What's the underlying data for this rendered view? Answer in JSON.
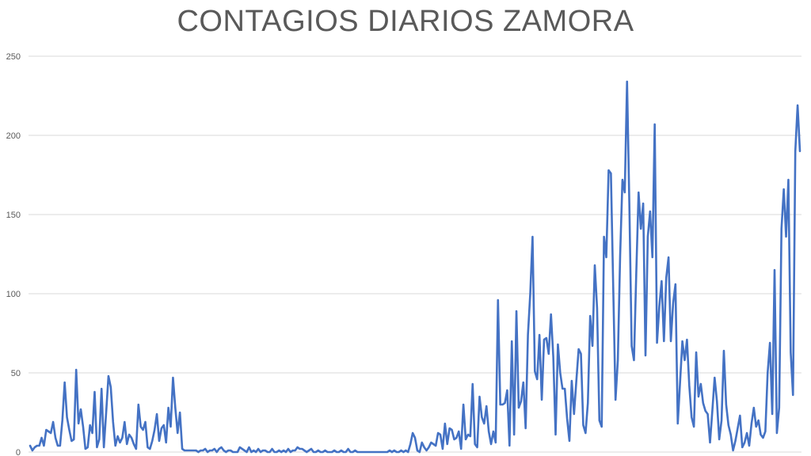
{
  "chart_data": {
    "type": "line",
    "title": "CONTAGIOS DIARIOS ZAMORA",
    "xlabel": "",
    "ylabel": "",
    "ylim": [
      0,
      250
    ],
    "yticks": [
      0,
      50,
      100,
      150,
      200,
      250
    ],
    "grid": "horizontal",
    "legend": "none",
    "series": [
      {
        "color": "#4472C4",
        "values": [
          4,
          1,
          3,
          4,
          4,
          9,
          4,
          14,
          13,
          12,
          19,
          9,
          4,
          4,
          20,
          44,
          22,
          14,
          7,
          8,
          52,
          18,
          27,
          16,
          2,
          3,
          17,
          12,
          38,
          3,
          8,
          40,
          3,
          25,
          48,
          41,
          19,
          4,
          10,
          6,
          9,
          19,
          5,
          11,
          9,
          5,
          2,
          30,
          16,
          14,
          19,
          3,
          2,
          7,
          14,
          24,
          7,
          15,
          17,
          6,
          28,
          16,
          47,
          28,
          12,
          25,
          2,
          1,
          1,
          1,
          1,
          1,
          1,
          0,
          1,
          1,
          2,
          0,
          1,
          1,
          2,
          0,
          2,
          3,
          1,
          0,
          1,
          1,
          0,
          0,
          0,
          3,
          2,
          1,
          0,
          3,
          0,
          1,
          0,
          2,
          0,
          1,
          1,
          0,
          0,
          2,
          0,
          0,
          1,
          0,
          1,
          0,
          2,
          0,
          1,
          1,
          3,
          2,
          2,
          1,
          0,
          1,
          2,
          0,
          0,
          1,
          0,
          0,
          1,
          0,
          0,
          0,
          1,
          0,
          0,
          1,
          0,
          0,
          2,
          0,
          0,
          1,
          0,
          0,
          0,
          0,
          0,
          0,
          0,
          0,
          0,
          0,
          0,
          0,
          0,
          0,
          1,
          0,
          1,
          0,
          0,
          1,
          0,
          1,
          0,
          5,
          12,
          9,
          1,
          0,
          6,
          3,
          1,
          3,
          6,
          5,
          4,
          12,
          11,
          2,
          18,
          5,
          15,
          14,
          8,
          9,
          13,
          2,
          30,
          8,
          11,
          10,
          43,
          5,
          3,
          35,
          22,
          18,
          29,
          13,
          5,
          13,
          6,
          96,
          30,
          30,
          31,
          39,
          4,
          70,
          11,
          89,
          28,
          32,
          44,
          15,
          74,
          100,
          136,
          51,
          46,
          74,
          33,
          71,
          72,
          62,
          87,
          60,
          11,
          68,
          50,
          40,
          40,
          21,
          7,
          45,
          24,
          45,
          65,
          62,
          17,
          12,
          31,
          86,
          67,
          118,
          91,
          20,
          16,
          136,
          123,
          178,
          176,
          104,
          33,
          58,
          124,
          172,
          164,
          234,
          156,
          67,
          58,
          113,
          164,
          141,
          157,
          61,
          136,
          152,
          123,
          207,
          69,
          92,
          108,
          70,
          110,
          123,
          70,
          94,
          106,
          18,
          44,
          70,
          58,
          71,
          42,
          22,
          16,
          63,
          35,
          43,
          31,
          26,
          24,
          6,
          26,
          47,
          32,
          8,
          20,
          64,
          30,
          17,
          11,
          1,
          7,
          15,
          23,
          3,
          6,
          12,
          4,
          18,
          28,
          16,
          20,
          11,
          9,
          13,
          50,
          69,
          24,
          115,
          12,
          28,
          141,
          166,
          136,
          172,
          63,
          36,
          190,
          219,
          190
        ]
      }
    ]
  }
}
